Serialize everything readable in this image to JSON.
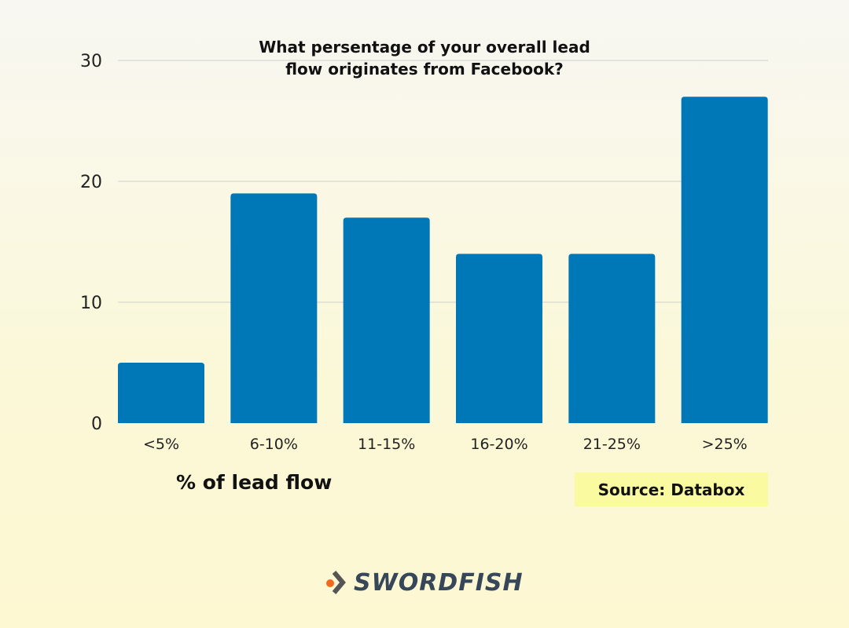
{
  "chart_data": {
    "type": "bar",
    "title": "What persentage of your overall lead flow originates from Facebook?",
    "title_lines": [
      "What persentage of your overall lead",
      "flow originates from Facebook?"
    ],
    "xlabel": "% of lead flow",
    "ylabel": "",
    "categories": [
      "<5%",
      "6-10%",
      "11-15%",
      "16-20%",
      "21-25%",
      ">25%"
    ],
    "values": [
      5,
      19,
      17,
      14,
      14,
      27
    ],
    "ylim": [
      0,
      30
    ],
    "yticks": [
      0,
      10,
      20,
      30
    ],
    "grid": true,
    "bar_color": "#0077b6"
  },
  "source": "Source: Databox",
  "logo": {
    "text": "SWORDFISH",
    "accent": "#f26a1b",
    "color": "#37475a"
  }
}
